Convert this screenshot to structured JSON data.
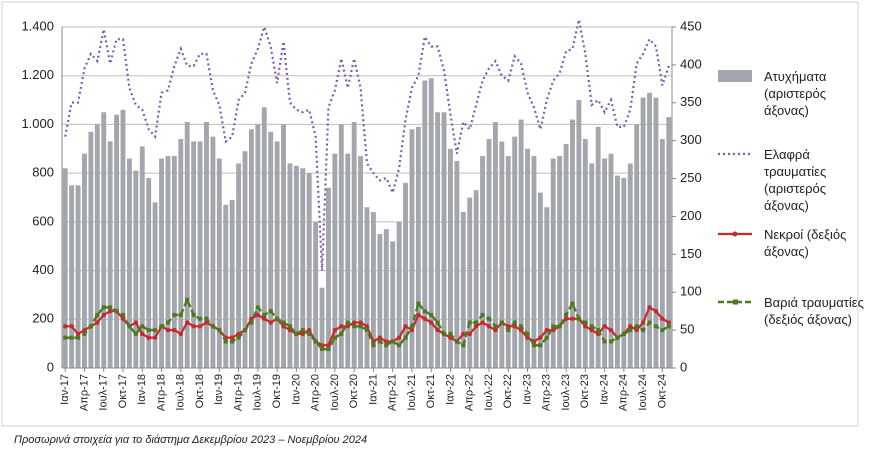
{
  "chart_data": {
    "type": "bar-line",
    "footnote": "Προσωρινά στοιχεία για το διάστημα Δεκεμβρίου 2023 – Νοεμβρίου 2024",
    "categories": [
      "Ιαν-17",
      null,
      null,
      "Απρ-17",
      null,
      null,
      "Ιουλ-17",
      null,
      null,
      "Οκτ-17",
      null,
      null,
      "Ιαν-18",
      null,
      null,
      "Απρ-18",
      null,
      null,
      "Ιουλ-18",
      null,
      null,
      "Οκτ-18",
      null,
      null,
      "Ιαν-19",
      null,
      null,
      "Απρ-19",
      null,
      null,
      "Ιουλ-19",
      null,
      null,
      "Οκτ-19",
      null,
      null,
      "Ιαν-20",
      null,
      null,
      "Απρ-20",
      null,
      null,
      "Ιουλ-20",
      null,
      null,
      "Οκτ-20",
      null,
      null,
      "Ιαν-21",
      null,
      null,
      "Απρ-21",
      null,
      null,
      "Ιουλ-21",
      null,
      null,
      "Οκτ-21",
      null,
      null,
      "Ιαν-22",
      null,
      null,
      "Απρ-22",
      null,
      null,
      "Ιουλ-22",
      null,
      null,
      "Οκτ-22",
      null,
      null,
      "Ιαν-23",
      null,
      null,
      "Απρ-23",
      null,
      null,
      "Ιουλ-23",
      null,
      null,
      "Οκτ-23",
      null,
      null,
      "Ιαν-24",
      null,
      null,
      "Απρ-24",
      null,
      null,
      "Ιουλ-24",
      null,
      null,
      "Οκτ-24",
      null
    ],
    "ylim": [
      0,
      1400
    ],
    "yticks": [
      0,
      200,
      400,
      600,
      800,
      {
        "value": 1000,
        "label": "1.000"
      },
      {
        "value": 1200,
        "label": "1.200"
      },
      {
        "value": 1400,
        "label": "1.400"
      }
    ],
    "y2lim": [
      0,
      450
    ],
    "y2ticks": [
      0,
      50,
      100,
      150,
      200,
      250,
      300,
      350,
      400,
      450
    ],
    "grid": true,
    "series": [
      {
        "name": "Ατυχήματα (αριστερός άξονας)",
        "type": "bar",
        "color": "#a3a6ad",
        "values": [
          820,
          750,
          750,
          880,
          970,
          1000,
          1050,
          930,
          1040,
          1060,
          860,
          810,
          910,
          780,
          680,
          860,
          870,
          870,
          940,
          1010,
          930,
          930,
          1010,
          950,
          860,
          670,
          690,
          840,
          890,
          980,
          1000,
          1070,
          970,
          930,
          1000,
          840,
          830,
          820,
          800,
          600,
          330,
          740,
          880,
          1000,
          880,
          1010,
          870,
          660,
          640,
          550,
          570,
          520,
          600,
          760,
          980,
          990,
          1180,
          1190,
          1050,
          1050,
          900,
          850,
          640,
          700,
          730,
          870,
          940,
          1010,
          930,
          870,
          950,
          1020,
          900,
          870,
          720,
          660,
          860,
          870,
          920,
          1020,
          1100,
          940,
          840,
          990,
          860,
          880,
          790,
          780,
          840,
          1000,
          1110,
          1130,
          1110,
          940,
          1030
        ]
      },
      {
        "name": "Ελαφρά τραυματίες (αριστερός άξονας)",
        "type": "line",
        "color": "#7a5cb5",
        "values": [
          950,
          1090,
          1090,
          1230,
          1290,
          1260,
          1390,
          1250,
          1350,
          1350,
          1150,
          1080,
          1060,
          980,
          950,
          1130,
          1140,
          1240,
          1310,
          1240,
          1240,
          1290,
          1290,
          1140,
          1080,
          930,
          950,
          1100,
          1130,
          1250,
          1310,
          1400,
          1320,
          1170,
          1340,
          1090,
          1060,
          1050,
          1060,
          950,
          400,
          1070,
          1140,
          1270,
          1150,
          1270,
          1150,
          840,
          800,
          770,
          780,
          720,
          820,
          1020,
          1150,
          1200,
          1360,
          1320,
          1320,
          1220,
          1040,
          880,
          1010,
          980,
          1080,
          1180,
          1230,
          1260,
          1200,
          1180,
          1280,
          1250,
          1130,
          1070,
          980,
          1100,
          1180,
          1210,
          1300,
          1310,
          1430,
          1290,
          1080,
          1100,
          1050,
          1100,
          990,
          990,
          1060,
          1250,
          1290,
          1350,
          1320,
          1160,
          1240
        ]
      },
      {
        "name": "Νεκροί (δεξιός άξονας)",
        "type": "line",
        "axis": "y2",
        "color": "#c8282e",
        "values": [
          55,
          55,
          45,
          50,
          55,
          60,
          70,
          75,
          75,
          65,
          55,
          60,
          45,
          40,
          40,
          55,
          50,
          50,
          45,
          60,
          55,
          55,
          60,
          55,
          50,
          40,
          40,
          45,
          50,
          65,
          70,
          65,
          60,
          65,
          55,
          50,
          45,
          45,
          50,
          35,
          30,
          30,
          50,
          55,
          55,
          60,
          60,
          55,
          35,
          40,
          35,
          35,
          40,
          55,
          50,
          70,
          65,
          60,
          50,
          45,
          40,
          35,
          45,
          45,
          55,
          60,
          55,
          50,
          60,
          55,
          55,
          50,
          40,
          35,
          40,
          50,
          50,
          55,
          65,
          65,
          65,
          55,
          50,
          45,
          55,
          50,
          40,
          45,
          55,
          50,
          60,
          80,
          75,
          65,
          60
        ]
      },
      {
        "name": "Βαριά τραυματίες (δεξιός άξονας)",
        "type": "line",
        "axis": "y2",
        "color": "#4d7a1f",
        "values": [
          40,
          40,
          40,
          45,
          55,
          70,
          80,
          80,
          75,
          70,
          55,
          45,
          55,
          50,
          50,
          55,
          60,
          70,
          70,
          90,
          70,
          65,
          65,
          55,
          50,
          35,
          35,
          40,
          50,
          60,
          80,
          70,
          75,
          65,
          60,
          55,
          45,
          50,
          45,
          35,
          25,
          25,
          40,
          45,
          60,
          55,
          55,
          50,
          30,
          35,
          30,
          35,
          30,
          40,
          55,
          85,
          75,
          70,
          60,
          45,
          45,
          35,
          30,
          60,
          60,
          70,
          65,
          55,
          60,
          50,
          60,
          55,
          45,
          30,
          30,
          40,
          55,
          55,
          70,
          85,
          65,
          60,
          55,
          50,
          35,
          35,
          40,
          45,
          50,
          55,
          50,
          60,
          55,
          50,
          55
        ]
      }
    ]
  }
}
